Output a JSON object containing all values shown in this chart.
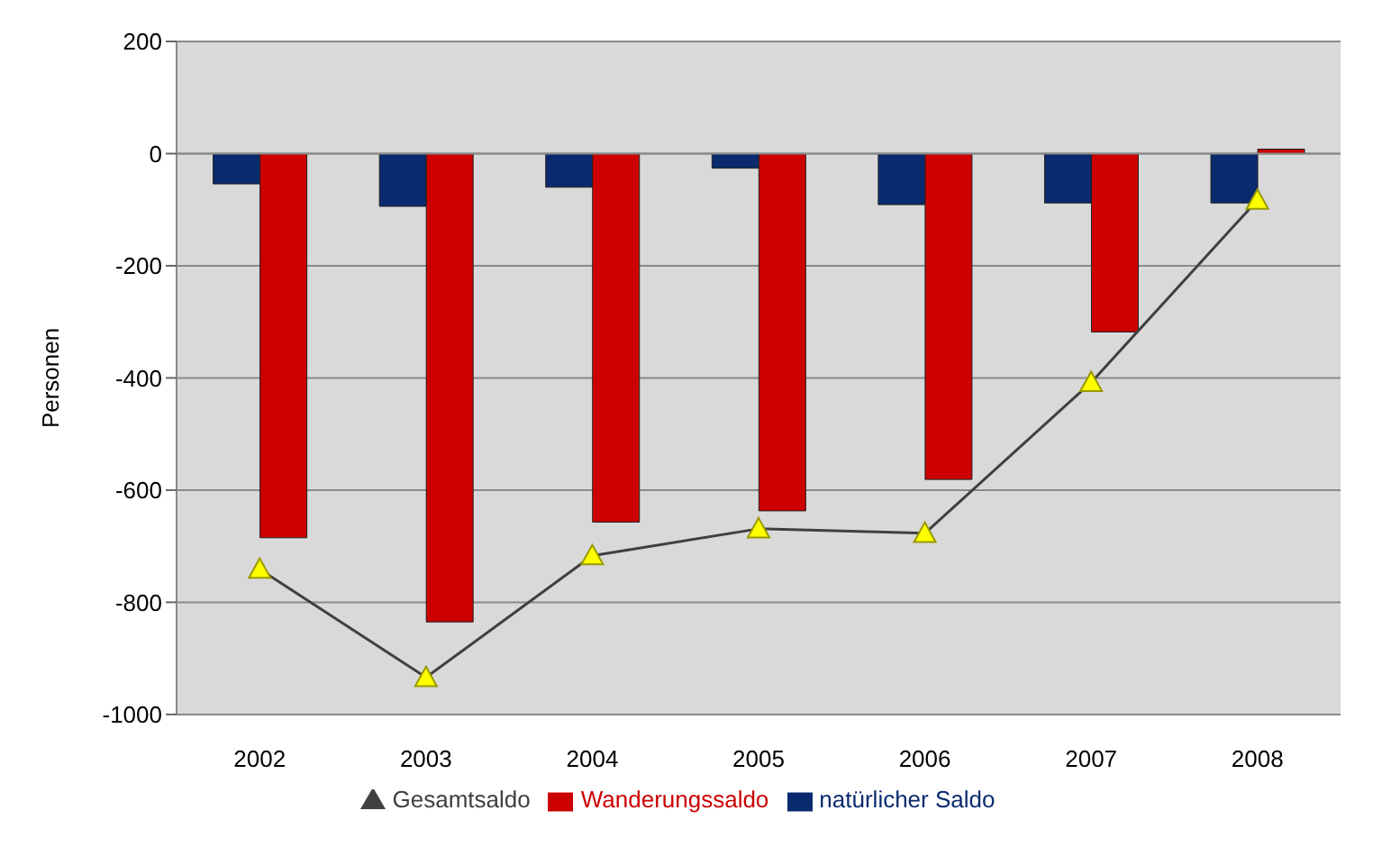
{
  "chart_data": {
    "type": "bar",
    "ylabel": "Personen",
    "categories": [
      "2002",
      "2003",
      "2004",
      "2005",
      "2006",
      "2007",
      "2008"
    ],
    "series": [
      {
        "name": "natürlicher Saldo",
        "color": "#0a2a6e",
        "values": [
          -54,
          -94,
          -60,
          -26,
          -91,
          -88,
          -88
        ]
      },
      {
        "name": "Wanderungssaldo",
        "color": "#cc0000",
        "values": [
          -685,
          -835,
          -657,
          -637,
          -581,
          -318,
          8
        ]
      },
      {
        "name": "Gesamtsaldo",
        "type": "line",
        "color": "#404040",
        "values": [
          -741,
          -934,
          -717,
          -669,
          -677,
          -408,
          -83
        ]
      }
    ],
    "ylim": [
      -1000,
      200
    ],
    "yticks": [
      -1000,
      -800,
      -600,
      -400,
      -200,
      0,
      200
    ],
    "grid": "y",
    "legend": "bottom",
    "marker": "triangle"
  }
}
